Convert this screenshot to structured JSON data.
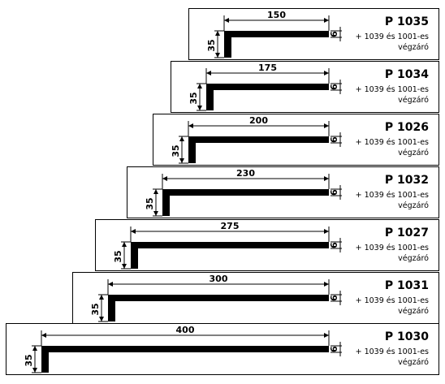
{
  "items": [
    {
      "code": "P 1035",
      "width": "150",
      "height": "35",
      "thickness": "6",
      "note": [
        "+ 1039 és 1001-es",
        "végzáró"
      ]
    },
    {
      "code": "P 1034",
      "width": "175",
      "height": "35",
      "thickness": "6",
      "note": [
        "+ 1039 és 1001-es",
        "végzáró"
      ]
    },
    {
      "code": "P 1026",
      "width": "200",
      "height": "35",
      "thickness": "6",
      "note": [
        "+ 1039 és 1001-es",
        "végzáró"
      ]
    },
    {
      "code": "P 1032",
      "width": "230",
      "height": "35",
      "thickness": "6",
      "note": [
        "+ 1039 és 1001-es",
        "végzáró"
      ]
    },
    {
      "code": "P 1027",
      "width": "275",
      "height": "35",
      "thickness": "6",
      "note": [
        "+ 1039 és 1001-es",
        "végzáró"
      ]
    },
    {
      "code": "P 1031",
      "width": "300",
      "height": "35",
      "thickness": "6",
      "note": [
        "+ 1039 és 1001-es",
        "végzáró"
      ]
    },
    {
      "code": "P 1030",
      "width": "400",
      "height": "35",
      "thickness": "6",
      "note": [
        "+ 1039 és 1001-es",
        "végzáró"
      ]
    }
  ]
}
